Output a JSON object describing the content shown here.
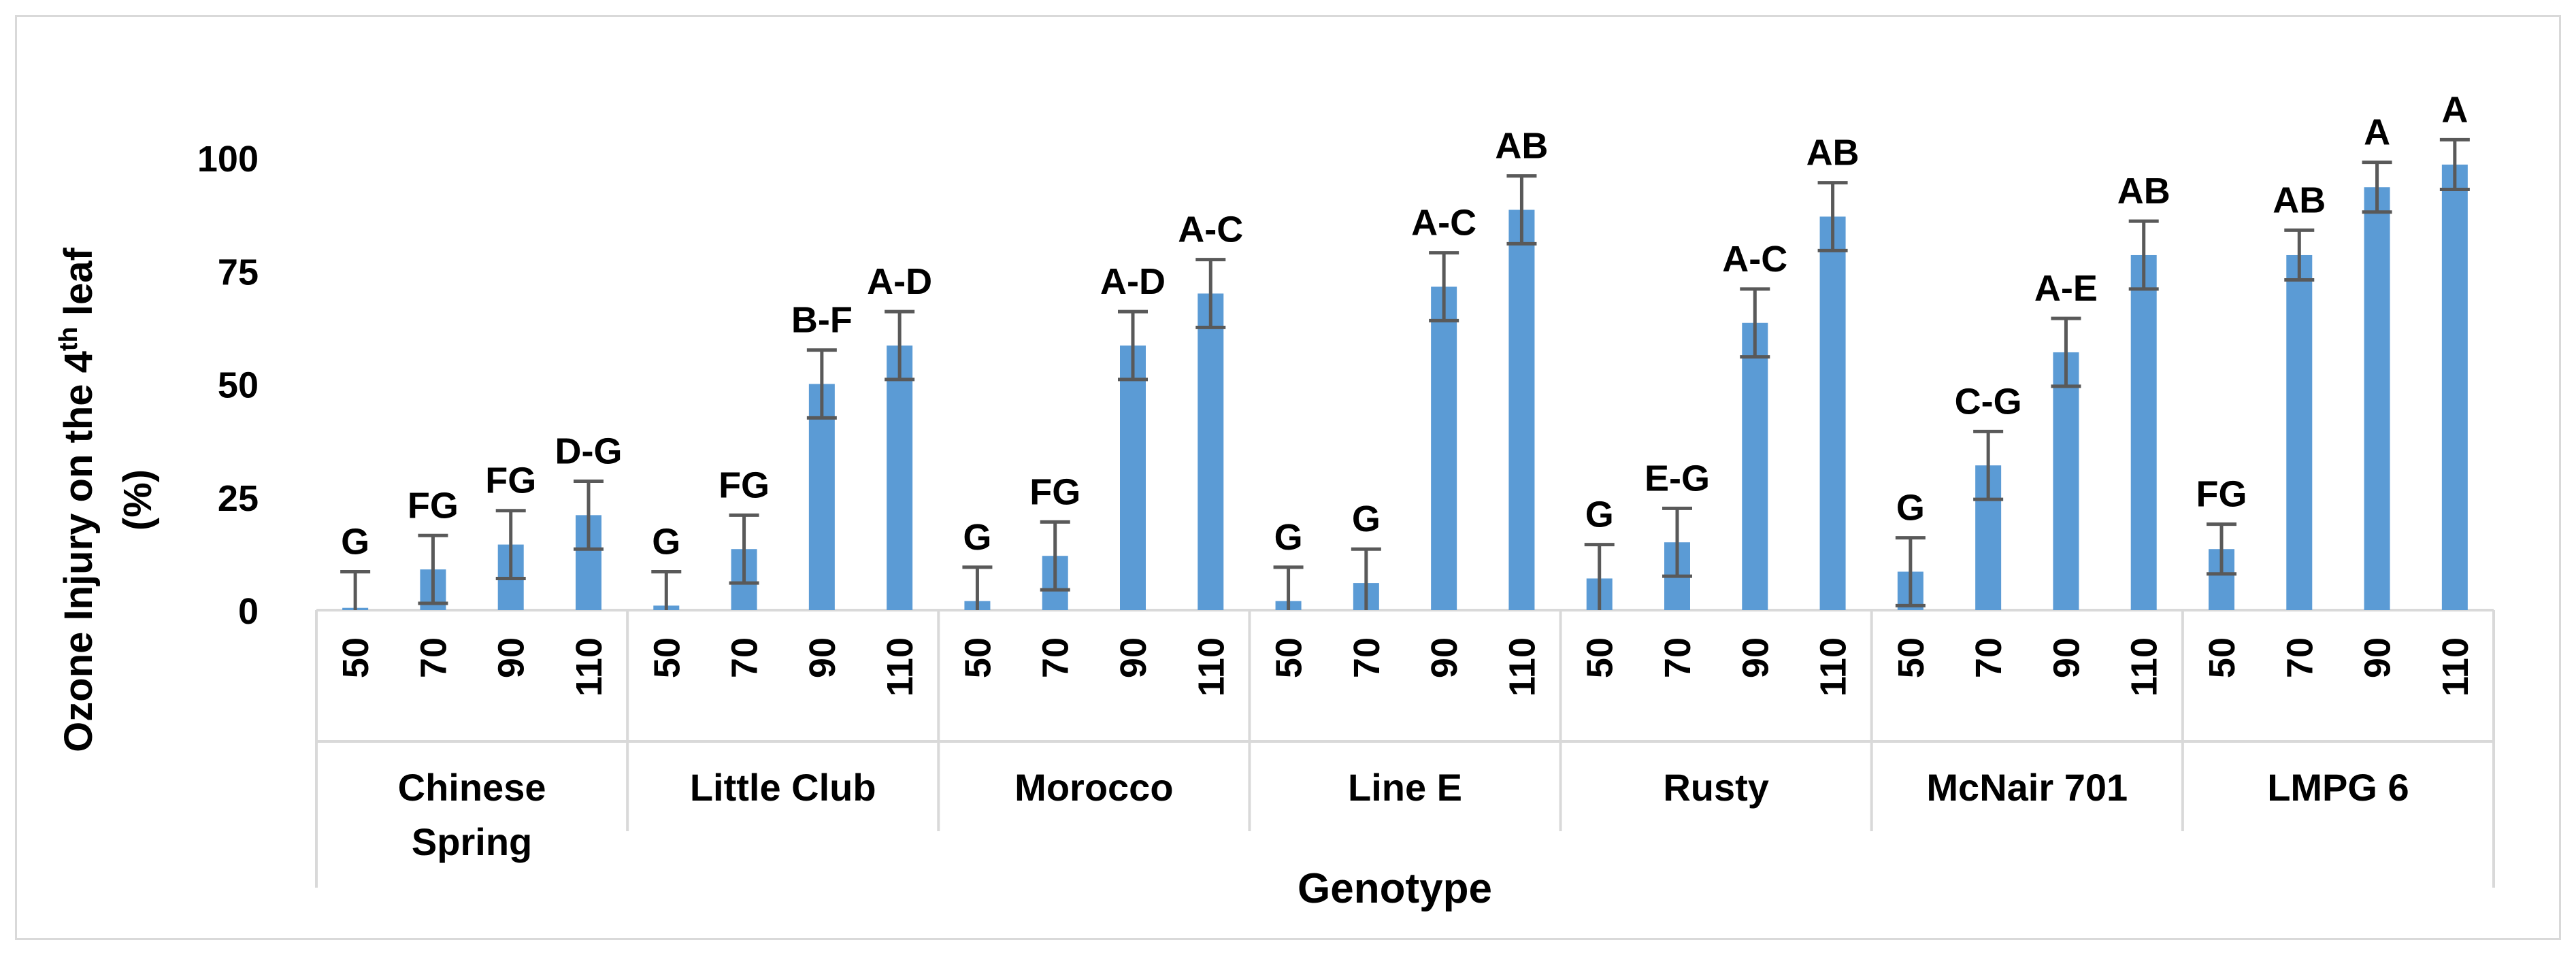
{
  "chart_data": {
    "type": "bar",
    "title": "",
    "xlabel": "Genotype",
    "ylabel_main": "Ozone Injury on the 4",
    "ylabel_sup": "th",
    "ylabel_tail": " leaf",
    "ylabel_line2": "(%)",
    "ylim": [
      0,
      110
    ],
    "yticks": [
      0,
      25,
      50,
      75,
      100
    ],
    "grid": false,
    "bar_color": "#5b9bd5",
    "error_color": "#595959",
    "groups": [
      {
        "name": "Chinese",
        "name2": "Spring",
        "bars": [
          {
            "x": "50",
            "value": 0.5,
            "err": 8,
            "label": "G"
          },
          {
            "x": "70",
            "value": 9,
            "err": 7.5,
            "label": "FG"
          },
          {
            "x": "90",
            "value": 14.5,
            "err": 7.5,
            "label": "FG"
          },
          {
            "x": "110",
            "value": 21,
            "err": 7.5,
            "label": "D-G"
          }
        ]
      },
      {
        "name": "Little Club",
        "name2": "",
        "bars": [
          {
            "x": "50",
            "value": 1,
            "err": 7.5,
            "label": "G"
          },
          {
            "x": "70",
            "value": 13.5,
            "err": 7.5,
            "label": "FG"
          },
          {
            "x": "90",
            "value": 50,
            "err": 7.5,
            "label": "B-F"
          },
          {
            "x": "110",
            "value": 58.5,
            "err": 7.5,
            "label": "A-D"
          }
        ]
      },
      {
        "name": "Morocco",
        "name2": "",
        "bars": [
          {
            "x": "50",
            "value": 2,
            "err": 7.5,
            "label": "G"
          },
          {
            "x": "70",
            "value": 12,
            "err": 7.5,
            "label": "FG"
          },
          {
            "x": "90",
            "value": 58.5,
            "err": 7.5,
            "label": "A-D"
          },
          {
            "x": "110",
            "value": 70,
            "err": 7.5,
            "label": "A-C"
          }
        ]
      },
      {
        "name": "Line E",
        "name2": "",
        "bars": [
          {
            "x": "50",
            "value": 2,
            "err": 7.5,
            "label": "G"
          },
          {
            "x": "70",
            "value": 6,
            "err": 7.5,
            "label": "G"
          },
          {
            "x": "90",
            "value": 71.5,
            "err": 7.5,
            "label": "A-C"
          },
          {
            "x": "110",
            "value": 88.5,
            "err": 7.5,
            "label": "AB"
          }
        ]
      },
      {
        "name": "Rusty",
        "name2": "",
        "bars": [
          {
            "x": "50",
            "value": 7,
            "err": 7.5,
            "label": "G"
          },
          {
            "x": "70",
            "value": 15,
            "err": 7.5,
            "label": "E-G"
          },
          {
            "x": "90",
            "value": 63.5,
            "err": 7.5,
            "label": "A-C"
          },
          {
            "x": "110",
            "value": 87,
            "err": 7.5,
            "label": "AB"
          }
        ]
      },
      {
        "name": "McNair 701",
        "name2": "",
        "bars": [
          {
            "x": "50",
            "value": 8.5,
            "err": 7.5,
            "label": "G"
          },
          {
            "x": "70",
            "value": 32,
            "err": 7.5,
            "label": "C-G"
          },
          {
            "x": "90",
            "value": 57,
            "err": 7.5,
            "label": "A-E"
          },
          {
            "x": "110",
            "value": 78.5,
            "err": 7.5,
            "label": "AB"
          }
        ]
      },
      {
        "name": "LMPG 6",
        "name2": "",
        "bars": [
          {
            "x": "50",
            "value": 13.5,
            "err": 5.5,
            "label": "FG"
          },
          {
            "x": "70",
            "value": 78.5,
            "err": 5.5,
            "label": "AB"
          },
          {
            "x": "90",
            "value": 93.5,
            "err": 5.5,
            "label": "A"
          },
          {
            "x": "110",
            "value": 98.5,
            "err": 5.5,
            "label": "A"
          }
        ]
      }
    ]
  }
}
